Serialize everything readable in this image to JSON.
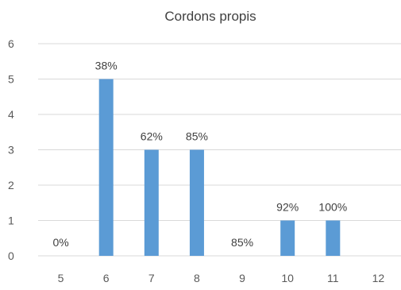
{
  "chart_data": {
    "type": "bar",
    "title": "Cordons propis",
    "xlabel": "",
    "ylabel": "",
    "categories": [
      "5",
      "6",
      "7",
      "8",
      "9",
      "10",
      "11",
      "12"
    ],
    "values": [
      0,
      5,
      3,
      3,
      0,
      1,
      1,
      0
    ],
    "data_labels": [
      "0%",
      "38%",
      "62%",
      "85%",
      "85%",
      "92%",
      "100%",
      ""
    ],
    "y_ticks": [
      "0",
      "1",
      "2",
      "3",
      "4",
      "5",
      "6"
    ],
    "ylim": [
      0,
      6
    ],
    "grid": true,
    "legend": "none",
    "colors": {
      "bar": "#5b9bd5",
      "grid": "#d9d9d9",
      "text": "#595959"
    }
  }
}
